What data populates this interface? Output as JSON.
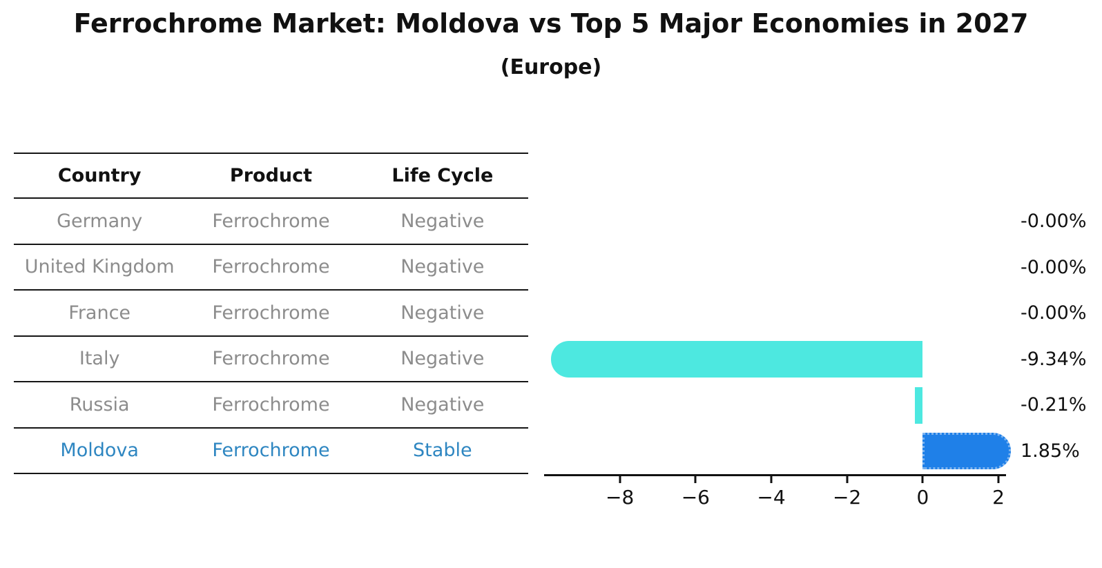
{
  "title": "Ferrochrome Market: Moldova vs Top 5 Major Economies in 2027",
  "subtitle": "(Europe)",
  "table": {
    "headers": [
      "Country",
      "Product",
      "Life Cycle"
    ],
    "rows": [
      {
        "country": "Germany",
        "product": "Ferrochrome",
        "life_cycle": "Negative",
        "highlight": false
      },
      {
        "country": "United Kingdom",
        "product": "Ferrochrome",
        "life_cycle": "Negative",
        "highlight": false
      },
      {
        "country": "France",
        "product": "Ferrochrome",
        "life_cycle": "Negative",
        "highlight": false
      },
      {
        "country": "Italy",
        "product": "Ferrochrome",
        "life_cycle": "Negative",
        "highlight": false
      },
      {
        "country": "Russia",
        "product": "Ferrochrome",
        "life_cycle": "Negative",
        "highlight": false
      },
      {
        "country": "Moldova",
        "product": "Ferrochrome",
        "life_cycle": "Stable",
        "highlight": true
      }
    ]
  },
  "chart_data": {
    "type": "bar",
    "orientation": "horizontal",
    "title": "Ferrochrome Market: Moldova vs Top 5 Major Economies in 2027",
    "subtitle": "(Europe)",
    "categories": [
      "Germany",
      "United Kingdom",
      "France",
      "Italy",
      "Russia",
      "Moldova"
    ],
    "values": [
      -0.0,
      -0.0,
      -0.0,
      -9.34,
      -0.21,
      1.85
    ],
    "value_labels": [
      "-0.00%",
      "-0.00%",
      "-0.00%",
      "-9.34%",
      "-0.21%",
      "1.85%"
    ],
    "unit": "%",
    "xlim": [
      -10.0,
      2.2
    ],
    "xticks": [
      -8,
      -6,
      -4,
      -2,
      0,
      2
    ],
    "xtick_labels": [
      "−8",
      "−6",
      "−4",
      "−2",
      "0",
      "2"
    ],
    "highlight_index": 5,
    "grid": false,
    "legend": false
  },
  "colors": {
    "background": "#ffffff",
    "bar_negative": "#4DE8E0",
    "bar_highlight": "#1F80E8",
    "highlight_dots": "#7FB5F0",
    "gray_text": "#8C8C8C",
    "highlight_text": "#2E86C1",
    "axis": "#111111"
  }
}
